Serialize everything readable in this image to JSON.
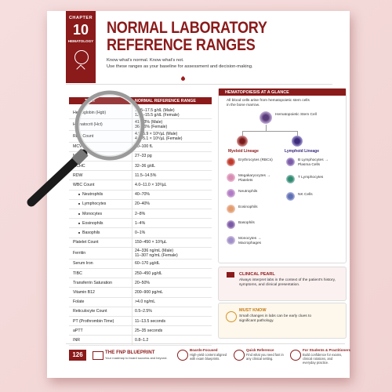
{
  "header": {
    "chapter_label": "CHAPTER",
    "chapter_number": "10",
    "chapter_topic": "HEMATOLOGY",
    "title": [
      "NORMAL LABORATORY",
      "REFERENCE RANGES"
    ],
    "subtitle": [
      "Know what's normal. Know what's not.",
      "Use these ranges as your baseline for assessment and decision-making."
    ]
  },
  "table": {
    "columns": [
      "TEST",
      "NORMAL REFERENCE RANGE"
    ],
    "rows": [
      {
        "test": "Hemoglobin (Hgb)",
        "range": [
          "13.5–17.5 g/dL (Male)",
          "12.0–15.5 g/dL (Female)"
        ]
      },
      {
        "test": "Hematocrit (Hct)",
        "range": [
          "41–53% (Male)",
          "36–46% (Female)"
        ]
      },
      {
        "test": "RBC Count",
        "range": [
          "4.5–5.9 × 10⁶/µL (Male)",
          "4.1–5.1 × 10⁶/µL (Female)"
        ]
      },
      {
        "test": "MCV",
        "range": [
          "80–100 fL"
        ]
      },
      {
        "test": "MCH",
        "range": [
          "27–33 pg"
        ]
      },
      {
        "test": "MCHC",
        "range": [
          "32–36 g/dL"
        ]
      },
      {
        "test": "RDW",
        "range": [
          "11.5–14.5%"
        ]
      },
      {
        "test": "WBC Count",
        "range": [
          "4.0–11.0 × 10³/µL"
        ]
      },
      {
        "test": "Neutrophils",
        "range": [
          "40–70%"
        ],
        "indent": true
      },
      {
        "test": "Lymphocytes",
        "range": [
          "20–40%"
        ],
        "indent": true
      },
      {
        "test": "Monocytes",
        "range": [
          "2–8%"
        ],
        "indent": true
      },
      {
        "test": "Eosinophils",
        "range": [
          "1–4%"
        ],
        "indent": true
      },
      {
        "test": "Basophils",
        "range": [
          "0–1%"
        ],
        "indent": true
      },
      {
        "test": "Platelet Count",
        "range": [
          "150–450 × 10³/µL"
        ]
      },
      {
        "test": "Ferritin",
        "range": [
          "24–336 ng/mL (Male)",
          "11–307 ng/mL (Female)"
        ]
      },
      {
        "test": "Serum Iron",
        "range": [
          "60–170 µg/dL"
        ]
      },
      {
        "test": "TIBC",
        "range": [
          "250–450 µg/dL"
        ]
      },
      {
        "test": "Transferrin Saturation",
        "range": [
          "20–50%"
        ]
      },
      {
        "test": "Vitamin B12",
        "range": [
          "200–900 pg/mL"
        ]
      },
      {
        "test": "Folate",
        "range": [
          ">4.0 ng/mL"
        ]
      },
      {
        "test": "Reticulocyte Count",
        "range": [
          "0.5–2.5%"
        ]
      },
      {
        "test": "PT (Prothrombin Time)",
        "range": [
          "11–13.5 seconds"
        ]
      },
      {
        "test": "aPTT",
        "range": [
          "25–35 seconds"
        ]
      },
      {
        "test": "INR",
        "range": [
          "0.8–1.2"
        ]
      }
    ]
  },
  "hematopoiesis": {
    "title": "HEMATOPOIESIS AT A GLANCE",
    "intro": "All blood cells arise from hematopoietic stem cells in the bone marrow.",
    "stem_cell": "Hematopoietic Stem Cell",
    "myeloid": {
      "label": "Myeloid Lineage",
      "cells": [
        "Erythrocytes (RBCs)",
        "Megakaryocytes → Platelets",
        "Neutrophils",
        "Eosinophils",
        "Basophils",
        "Monocytes → Macrophages"
      ]
    },
    "lymphoid": {
      "label": "Lymphoid Lineage",
      "cells": [
        "B Lymphocytes → Plasma Cells",
        "T Lymphocytes",
        "NK Cells"
      ]
    }
  },
  "clinical_pearl": {
    "title": "CLINICAL PEARL",
    "text": "Always interpret labs in the context of the patient's history, symptoms, and clinical presentation."
  },
  "must_know": {
    "title": "MUST KNOW",
    "text": "Small changes in labs can be early clues to significant pathology."
  },
  "footer": {
    "page": "126",
    "brand": {
      "name": "THE FNP BLUEPRINT",
      "tagline": "Your roadmap to board success and beyond."
    },
    "features": [
      {
        "title": "Boards-Focused",
        "text": "High-yield content aligned with exam blueprints."
      },
      {
        "title": "Quick Reference",
        "text": "Find what you need fast in any clinical setting."
      },
      {
        "title": "For Students & Practitioners",
        "text": "Build confidence for exams, clinical rotations, and everyday practice."
      }
    ]
  }
}
